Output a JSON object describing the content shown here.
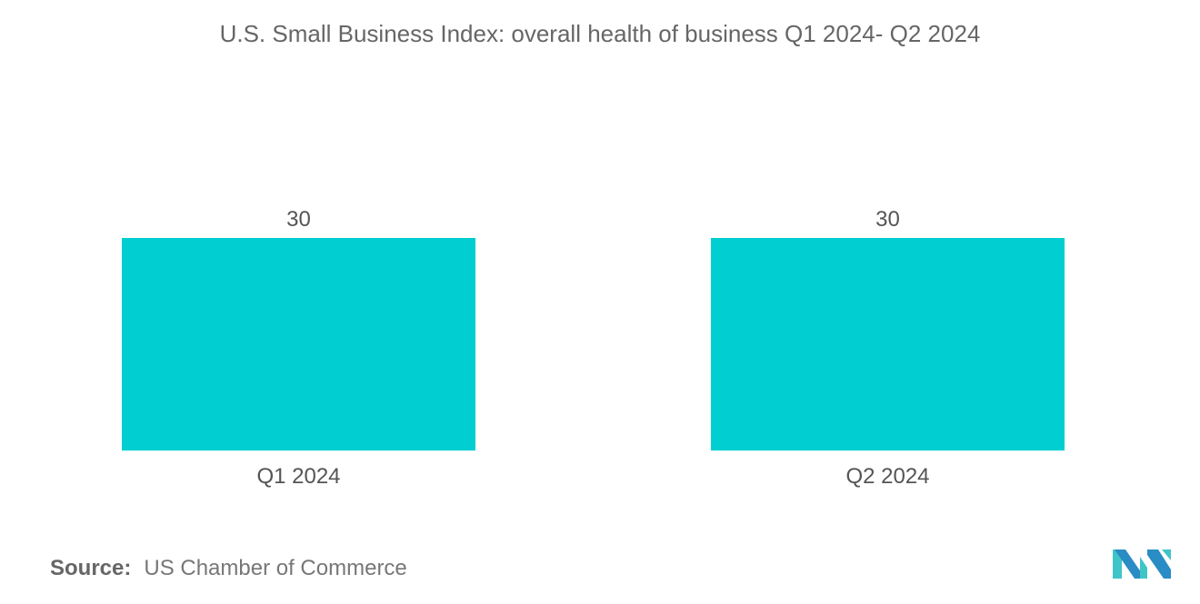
{
  "chart_data": {
    "type": "bar",
    "title": "U.S. Small Business Index: overall health of business Q1 2024- Q2 2024",
    "categories": [
      "Q1 2024",
      "Q2 2024"
    ],
    "values": [
      30,
      30
    ],
    "xlabel": "",
    "ylabel": "",
    "ylim": [
      0,
      40
    ],
    "grid": false,
    "bar_color": "#00CED1"
  },
  "source": {
    "label": "Source:",
    "text": "US Chamber of Commerce"
  }
}
